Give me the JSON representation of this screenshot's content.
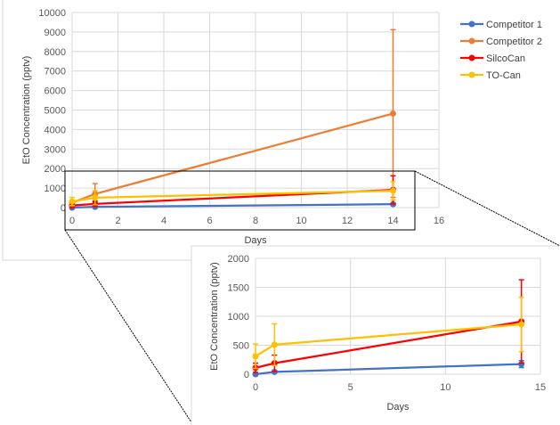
{
  "chart_data": [
    {
      "type": "line",
      "title": "",
      "xlabel": "Days",
      "ylabel": "EtO Concentration (pptv)",
      "xlim": [
        0,
        16
      ],
      "ylim": [
        0,
        10000
      ],
      "xticks": [
        "0",
        "2",
        "4",
        "6",
        "8",
        "10",
        "12",
        "14",
        "16"
      ],
      "yticks": [
        "0",
        "1000",
        "2000",
        "3000",
        "4000",
        "5000",
        "6000",
        "7000",
        "8000",
        "9000",
        "10000"
      ],
      "grid": true,
      "legend_position": "right",
      "x": [
        0,
        1,
        14
      ],
      "series": [
        {
          "name": "Competitor 1",
          "color": "#4472C4",
          "values": [
            0,
            40,
            175
          ],
          "errors": [
            10,
            20,
            60
          ]
        },
        {
          "name": "Competitor 2",
          "color": "#ED7D31",
          "values": [
            250,
            700,
            4820
          ],
          "errors": [
            80,
            530,
            4300
          ]
        },
        {
          "name": "SilcoCan",
          "color": "#FF0000",
          "values": [
            110,
            190,
            910
          ],
          "errors": [
            80,
            140,
            720
          ]
        },
        {
          "name": "TO-Can",
          "color": "#FFC000",
          "values": [
            310,
            510,
            860
          ],
          "errors": [
            210,
            360,
            470
          ]
        }
      ]
    },
    {
      "type": "line",
      "title": "",
      "xlabel": "Days",
      "ylabel": "EtO Concentration (pptv)",
      "xlim": [
        0,
        15
      ],
      "ylim": [
        0,
        2000
      ],
      "xticks": [
        "0",
        "5",
        "10",
        "15"
      ],
      "yticks": [
        "0",
        "500",
        "1000",
        "1500",
        "2000"
      ],
      "grid": true,
      "x": [
        0,
        1,
        14
      ],
      "series": [
        {
          "name": "Competitor 1",
          "color": "#4472C4",
          "values": [
            0,
            40,
            175
          ],
          "errors": [
            10,
            20,
            60
          ]
        },
        {
          "name": "SilcoCan",
          "color": "#FF0000",
          "values": [
            110,
            190,
            910
          ],
          "errors": [
            80,
            140,
            720
          ]
        },
        {
          "name": "TO-Can",
          "color": "#FFC000",
          "values": [
            310,
            510,
            860
          ],
          "errors": [
            210,
            360,
            470
          ]
        }
      ]
    }
  ]
}
